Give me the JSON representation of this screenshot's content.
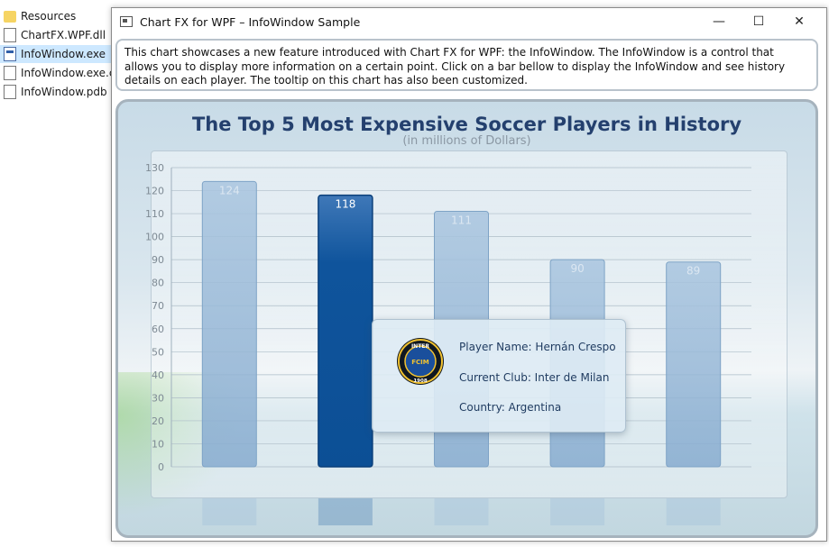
{
  "explorer": {
    "items": [
      {
        "label": "Resources",
        "icon": "folder-icon"
      },
      {
        "label": "ChartFX.WPF.dll",
        "icon": "dll-file-icon"
      },
      {
        "label": "InfoWindow.exe",
        "icon": "exe-file-icon"
      },
      {
        "label": "InfoWindow.exe.c",
        "icon": "config-file-icon"
      },
      {
        "label": "InfoWindow.pdb",
        "icon": "pdb-file-icon"
      }
    ]
  },
  "window": {
    "title": "Chart FX for WPF – InfoWindow Sample",
    "minimize": "—",
    "maximize": "☐",
    "close": "✕",
    "description": "This chart showcases a new feature introduced with Chart FX for WPF: the InfoWindow. The InfoWindow is a control that allows you to display more information on a certain point. Click on a bar bellow to display the InfoWindow and see history details on each player. The tooltip on this chart has also been customized."
  },
  "chart_data": {
    "type": "bar",
    "title": "The Top 5 Most Expensive Soccer Players in History",
    "subtitle": "(in millions of Dollars)",
    "categories": [
      "",
      "",
      "",
      "",
      ""
    ],
    "values": [
      124,
      118,
      111,
      90,
      89
    ],
    "value_labels": [
      "124",
      "118",
      "111",
      "90",
      "89"
    ],
    "selected_index": 1,
    "ylim": [
      0,
      130
    ],
    "yticks": [
      0,
      10,
      20,
      30,
      40,
      50,
      60,
      70,
      80,
      90,
      100,
      110,
      120,
      130
    ],
    "grid": true,
    "colors": {
      "bar": "#8fb4d6",
      "selected": "#1458a0",
      "text": "#24406e"
    }
  },
  "infowindow": {
    "player_name": "Player Name: Hernán Crespo",
    "current_club": "Current Club: Inter de Milan",
    "country": "Country: Argentina",
    "logo_text": "INTER",
    "logo_year": "1908",
    "logo_monogram": "FCIM"
  }
}
